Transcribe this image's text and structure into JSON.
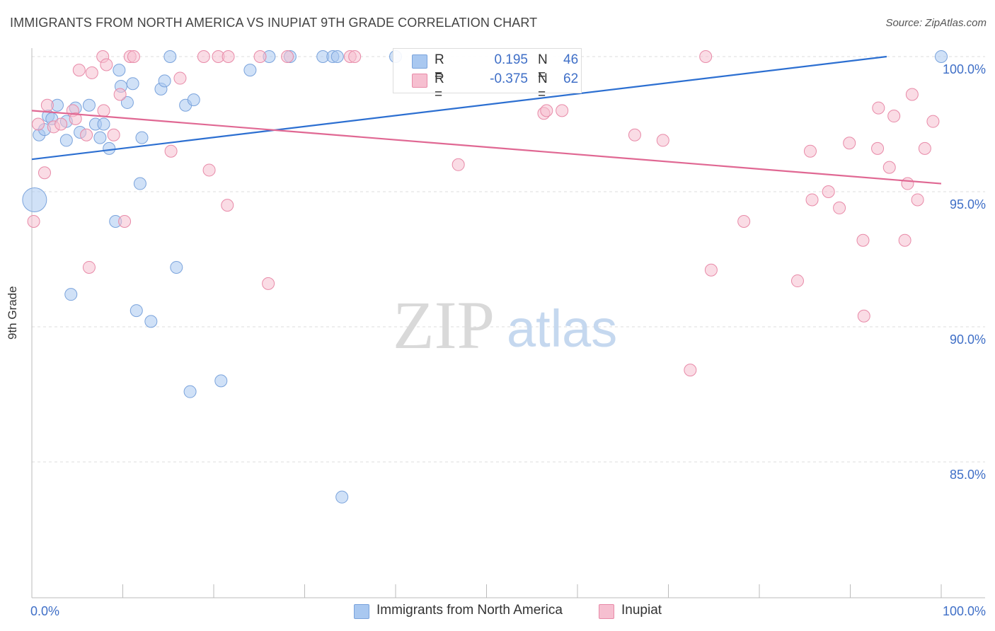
{
  "title": "IMMIGRANTS FROM NORTH AMERICA VS INUPIAT 9TH GRADE CORRELATION CHART",
  "source": "Source: ZipAtlas.com",
  "watermark": {
    "zip": "ZIP",
    "atlas": "atlas"
  },
  "legend_stats": [
    {
      "r_label": "R =",
      "r_value": "0.195",
      "n_label": "N =",
      "n_value": "46",
      "color": "#a9c8f0",
      "border": "#7aa3dc"
    },
    {
      "r_label": "R =",
      "r_value": "-0.375",
      "n_label": "N =",
      "n_value": "62",
      "color": "#f6bfd0",
      "border": "#e88aa8"
    }
  ],
  "bottom_legend": [
    {
      "label": "Immigrants from North America",
      "color": "#a9c8f0",
      "border": "#7aa3dc"
    },
    {
      "label": "Inupiat",
      "color": "#f6bfd0",
      "border": "#e88aa8"
    }
  ],
  "chart_data": {
    "type": "scatter",
    "title": "IMMIGRANTS FROM NORTH AMERICA VS INUPIAT 9TH GRADE CORRELATION CHART",
    "xlabel": "",
    "ylabel": "9th Grade",
    "xlim": [
      0,
      100
    ],
    "ylim": [
      80,
      100.6
    ],
    "x_tick_labels": [
      "0.0%",
      "100.0%"
    ],
    "y_ticks": [
      {
        "value": 100,
        "label": "100.0%"
      },
      {
        "value": 95,
        "label": "95.0%"
      },
      {
        "value": 90,
        "label": "90.0%"
      },
      {
        "value": 85,
        "label": "85.0%"
      }
    ],
    "grid": true,
    "series": [
      {
        "name": "Immigrants from North America",
        "color": "#a9c8f0",
        "stroke": "#7aa3dc",
        "trend_color": "#2c6fd1",
        "trend": [
          [
            0,
            96.2
          ],
          [
            94,
            100
          ]
        ],
        "points": [
          [
            0.3,
            94.7,
            3
          ],
          [
            0.8,
            97.1,
            1
          ],
          [
            1.4,
            97.3,
            1
          ],
          [
            1.8,
            97.8,
            1
          ],
          [
            2.2,
            97.7,
            1
          ],
          [
            2.8,
            98.2,
            1
          ],
          [
            3.8,
            97.6,
            1
          ],
          [
            3.8,
            96.9,
            1
          ],
          [
            4.8,
            98.1,
            1
          ],
          [
            5.3,
            97.2,
            1
          ],
          [
            6.3,
            98.2,
            1
          ],
          [
            7.0,
            97.5,
            1
          ],
          [
            7.5,
            97.0,
            1
          ],
          [
            7.9,
            97.5,
            1
          ],
          [
            8.5,
            96.6,
            1
          ],
          [
            9.2,
            93.9,
            1
          ],
          [
            9.6,
            99.5,
            1
          ],
          [
            9.8,
            98.9,
            1
          ],
          [
            10.5,
            98.3,
            1
          ],
          [
            11.1,
            99.0,
            1
          ],
          [
            12.1,
            97.0,
            1
          ],
          [
            11.9,
            95.3,
            1
          ],
          [
            14.2,
            98.8,
            1
          ],
          [
            14.6,
            99.1,
            1
          ],
          [
            15.2,
            100.0,
            1
          ],
          [
            15.9,
            92.2,
            1
          ],
          [
            16.9,
            98.2,
            1
          ],
          [
            17.4,
            87.6,
            1
          ],
          [
            17.8,
            98.4,
            1
          ],
          [
            20.8,
            88.0,
            1
          ],
          [
            24.0,
            99.5,
            1
          ],
          [
            26.1,
            100.0,
            1
          ],
          [
            28.4,
            100.0,
            1
          ],
          [
            32.0,
            100.0,
            1
          ],
          [
            33.1,
            100.0,
            1
          ],
          [
            33.6,
            100.0,
            1
          ],
          [
            34.1,
            83.7,
            1
          ],
          [
            40.0,
            100.0,
            1
          ],
          [
            4.3,
            91.2,
            1
          ],
          [
            11.5,
            90.6,
            1
          ],
          [
            13.1,
            90.2,
            1
          ],
          [
            100.0,
            100.0,
            1
          ]
        ]
      },
      {
        "name": "Inupiat",
        "color": "#f6bfd0",
        "stroke": "#e88aa8",
        "trend_color": "#e06893",
        "trend": [
          [
            0,
            98.0
          ],
          [
            100,
            95.3
          ]
        ],
        "points": [
          [
            0.2,
            93.9,
            1
          ],
          [
            0.7,
            97.5,
            1
          ],
          [
            1.4,
            95.7,
            1
          ],
          [
            1.7,
            98.2,
            1
          ],
          [
            2.4,
            97.4,
            1
          ],
          [
            3.2,
            97.5,
            1
          ],
          [
            4.5,
            98.0,
            1
          ],
          [
            4.8,
            97.7,
            1
          ],
          [
            5.2,
            99.5,
            1
          ],
          [
            6.0,
            97.1,
            1
          ],
          [
            6.3,
            92.2,
            1
          ],
          [
            6.6,
            99.4,
            1
          ],
          [
            7.8,
            100.0,
            1
          ],
          [
            7.9,
            98.0,
            1
          ],
          [
            8.2,
            99.7,
            1
          ],
          [
            9.0,
            97.1,
            1
          ],
          [
            9.7,
            98.6,
            1
          ],
          [
            10.2,
            93.9,
            1
          ],
          [
            10.8,
            100.0,
            1
          ],
          [
            11.2,
            100.0,
            1
          ],
          [
            15.3,
            96.5,
            1
          ],
          [
            16.3,
            99.2,
            1
          ],
          [
            18.9,
            100.0,
            1
          ],
          [
            19.5,
            95.8,
            1
          ],
          [
            20.5,
            100.0,
            1
          ],
          [
            21.5,
            94.5,
            1
          ],
          [
            21.6,
            100.0,
            1
          ],
          [
            25.1,
            100.0,
            1
          ],
          [
            26.0,
            91.6,
            1
          ],
          [
            28.1,
            100.0,
            1
          ],
          [
            35.0,
            100.0,
            1
          ],
          [
            35.5,
            100.0,
            1
          ],
          [
            46.9,
            96.0,
            1
          ],
          [
            56.3,
            97.9,
            1
          ],
          [
            56.6,
            98.0,
            1
          ],
          [
            58.3,
            98.0,
            1
          ],
          [
            66.3,
            97.1,
            1
          ],
          [
            69.4,
            96.9,
            1
          ],
          [
            74.1,
            100.0,
            1
          ],
          [
            74.7,
            92.1,
            1
          ],
          [
            72.4,
            88.4,
            1
          ],
          [
            78.3,
            93.9,
            1
          ],
          [
            84.2,
            91.7,
            1
          ],
          [
            85.6,
            96.5,
            1
          ],
          [
            85.8,
            94.7,
            1
          ],
          [
            87.6,
            95.0,
            1
          ],
          [
            88.8,
            94.4,
            1
          ],
          [
            89.9,
            96.8,
            1
          ],
          [
            91.4,
            93.2,
            1
          ],
          [
            91.5,
            90.4,
            1
          ],
          [
            93.0,
            96.6,
            1
          ],
          [
            93.1,
            98.1,
            1
          ],
          [
            94.3,
            95.9,
            1
          ],
          [
            94.8,
            97.8,
            1
          ],
          [
            96.0,
            93.2,
            1
          ],
          [
            96.3,
            95.3,
            1
          ],
          [
            96.8,
            98.6,
            1
          ],
          [
            97.4,
            94.7,
            1
          ],
          [
            98.2,
            96.6,
            1
          ],
          [
            99.1,
            97.6,
            1
          ]
        ]
      }
    ]
  }
}
